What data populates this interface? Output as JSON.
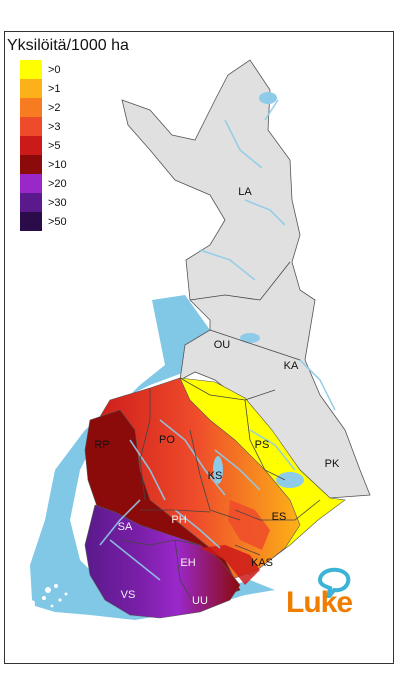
{
  "title": "Yksilöitä/1000 ha",
  "legend": [
    {
      "label": ">0",
      "color": "#ffff00"
    },
    {
      "label": ">1",
      "color": "#fdb118"
    },
    {
      "label": ">2",
      "color": "#f77b20"
    },
    {
      "label": ">3",
      "color": "#ee4b2b"
    },
    {
      "label": ">5",
      "color": "#cc1a1a"
    },
    {
      "label": ">10",
      "color": "#8b0a0a"
    },
    {
      "label": ">20",
      "color": "#9a28c9"
    },
    {
      "label": ">30",
      "color": "#5a1a8c"
    },
    {
      "label": ">50",
      "color": "#2b0c4a"
    }
  ],
  "regions": {
    "LA": "LA",
    "OU": "OU",
    "KA": "KA",
    "RP": "RP",
    "PO": "PO",
    "PS": "PS",
    "KS": "KS",
    "PK": "PK",
    "SA": "SA",
    "PH": "PH",
    "ES": "ES",
    "EH": "EH",
    "KAS": "KAS",
    "VS": "VS",
    "UU": "UU"
  },
  "colors": {
    "land_gray": "#e0e0e0",
    "sea": "#80c8e6",
    "water": "#8ecbe8",
    "border": "#555555",
    "logo_orange": "#f07d00",
    "logo_teal": "#3bb3d6"
  },
  "logo": {
    "text": "Luke"
  }
}
